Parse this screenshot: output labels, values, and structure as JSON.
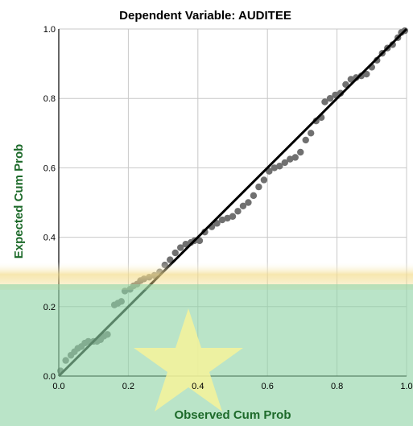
{
  "chart_data": {
    "type": "scatter",
    "title": "Dependent Variable: AUDITEE",
    "xlabel": "Observed Cum Prob",
    "ylabel": "Expected Cum Prob",
    "xlim": [
      0,
      1
    ],
    "ylim": [
      0,
      1
    ],
    "x_ticks": [
      "0.0",
      "0.2",
      "0.4",
      "0.6",
      "0.8",
      "1.0"
    ],
    "y_ticks": [
      "0.0",
      "0.2",
      "0.4",
      "0.6",
      "0.8",
      "1.0"
    ],
    "grid": true,
    "reference_line": {
      "from": [
        0,
        0
      ],
      "to": [
        1,
        1
      ]
    },
    "points": [
      [
        0.005,
        0.015
      ],
      [
        0.02,
        0.045
      ],
      [
        0.035,
        0.06
      ],
      [
        0.045,
        0.07
      ],
      [
        0.055,
        0.08
      ],
      [
        0.065,
        0.085
      ],
      [
        0.075,
        0.095
      ],
      [
        0.085,
        0.1
      ],
      [
        0.1,
        0.1
      ],
      [
        0.11,
        0.1
      ],
      [
        0.12,
        0.105
      ],
      [
        0.13,
        0.115
      ],
      [
        0.14,
        0.12
      ],
      [
        0.16,
        0.205
      ],
      [
        0.17,
        0.21
      ],
      [
        0.18,
        0.215
      ],
      [
        0.19,
        0.245
      ],
      [
        0.205,
        0.25
      ],
      [
        0.215,
        0.26
      ],
      [
        0.225,
        0.265
      ],
      [
        0.235,
        0.275
      ],
      [
        0.245,
        0.28
      ],
      [
        0.26,
        0.285
      ],
      [
        0.275,
        0.29
      ],
      [
        0.29,
        0.3
      ],
      [
        0.305,
        0.32
      ],
      [
        0.32,
        0.335
      ],
      [
        0.335,
        0.355
      ],
      [
        0.35,
        0.37
      ],
      [
        0.365,
        0.38
      ],
      [
        0.38,
        0.385
      ],
      [
        0.39,
        0.39
      ],
      [
        0.405,
        0.39
      ],
      [
        0.42,
        0.415
      ],
      [
        0.44,
        0.43
      ],
      [
        0.455,
        0.44
      ],
      [
        0.47,
        0.45
      ],
      [
        0.485,
        0.455
      ],
      [
        0.5,
        0.46
      ],
      [
        0.515,
        0.475
      ],
      [
        0.53,
        0.49
      ],
      [
        0.545,
        0.5
      ],
      [
        0.56,
        0.52
      ],
      [
        0.575,
        0.545
      ],
      [
        0.59,
        0.565
      ],
      [
        0.605,
        0.59
      ],
      [
        0.62,
        0.6
      ],
      [
        0.635,
        0.605
      ],
      [
        0.65,
        0.615
      ],
      [
        0.665,
        0.625
      ],
      [
        0.68,
        0.63
      ],
      [
        0.695,
        0.645
      ],
      [
        0.71,
        0.68
      ],
      [
        0.725,
        0.7
      ],
      [
        0.74,
        0.735
      ],
      [
        0.755,
        0.745
      ],
      [
        0.765,
        0.79
      ],
      [
        0.78,
        0.8
      ],
      [
        0.795,
        0.81
      ],
      [
        0.81,
        0.815
      ],
      [
        0.825,
        0.84
      ],
      [
        0.84,
        0.855
      ],
      [
        0.855,
        0.86
      ],
      [
        0.87,
        0.865
      ],
      [
        0.885,
        0.87
      ],
      [
        0.9,
        0.89
      ],
      [
        0.915,
        0.91
      ],
      [
        0.93,
        0.93
      ],
      [
        0.945,
        0.945
      ],
      [
        0.96,
        0.955
      ],
      [
        0.975,
        0.975
      ],
      [
        0.985,
        0.99
      ],
      [
        0.995,
        0.995
      ]
    ],
    "colors": {
      "points": "#707070",
      "line": "#000000",
      "grid": "#c8c8c8",
      "axis_label": "#1d6a2a"
    }
  }
}
